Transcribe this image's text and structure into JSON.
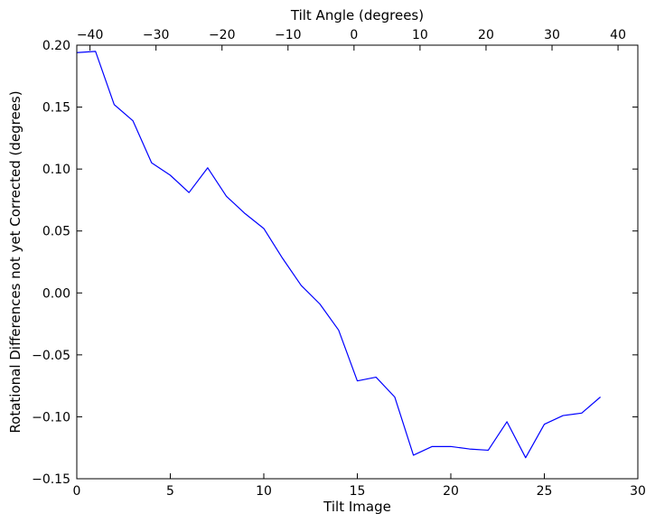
{
  "chart_data": {
    "type": "line",
    "title": "",
    "xlabel": "Tilt Image",
    "ylabel": "Rotational Differences not yet Corrected (degrees)",
    "top_xlabel": "Tilt Angle (degrees)",
    "xlim": [
      0,
      30
    ],
    "ylim": [
      -0.15,
      0.2
    ],
    "top_xlim": [
      -42,
      43
    ],
    "x_ticks": [
      0,
      5,
      10,
      15,
      20,
      25,
      30
    ],
    "x_tick_labels": [
      "0",
      "5",
      "10",
      "15",
      "20",
      "25",
      "30"
    ],
    "y_ticks": [
      0.2,
      0.15,
      0.1,
      0.05,
      0.0,
      -0.05,
      -0.1,
      -0.15
    ],
    "y_tick_labels": [
      "0.20",
      "0.15",
      "0.10",
      "0.05",
      "0.00",
      "−0.05",
      "−0.10",
      "−0.15"
    ],
    "top_x_ticks": [
      -40,
      -30,
      -20,
      -10,
      0,
      10,
      20,
      30,
      40
    ],
    "top_x_tick_labels": [
      "−40",
      "−30",
      "−20",
      "−10",
      "0",
      "10",
      "20",
      "30",
      "40"
    ],
    "grid": false,
    "line_color": "#0000ff",
    "series": [
      {
        "x": [
          0,
          1,
          2,
          3,
          4,
          5,
          6,
          7,
          8,
          9,
          10,
          11,
          12,
          13,
          14,
          15,
          16,
          17,
          18,
          19,
          20,
          21,
          22,
          23,
          24,
          25,
          26,
          27,
          28
        ],
        "values": [
          0.194,
          0.195,
          0.152,
          0.139,
          0.105,
          0.095,
          0.081,
          0.101,
          0.078,
          0.064,
          0.052,
          0.028,
          0.006,
          -0.009,
          -0.03,
          -0.071,
          -0.068,
          -0.084,
          -0.131,
          -0.124,
          -0.124,
          -0.126,
          -0.127,
          -0.104,
          -0.133,
          -0.106,
          -0.099,
          -0.097,
          -0.084
        ]
      }
    ]
  }
}
